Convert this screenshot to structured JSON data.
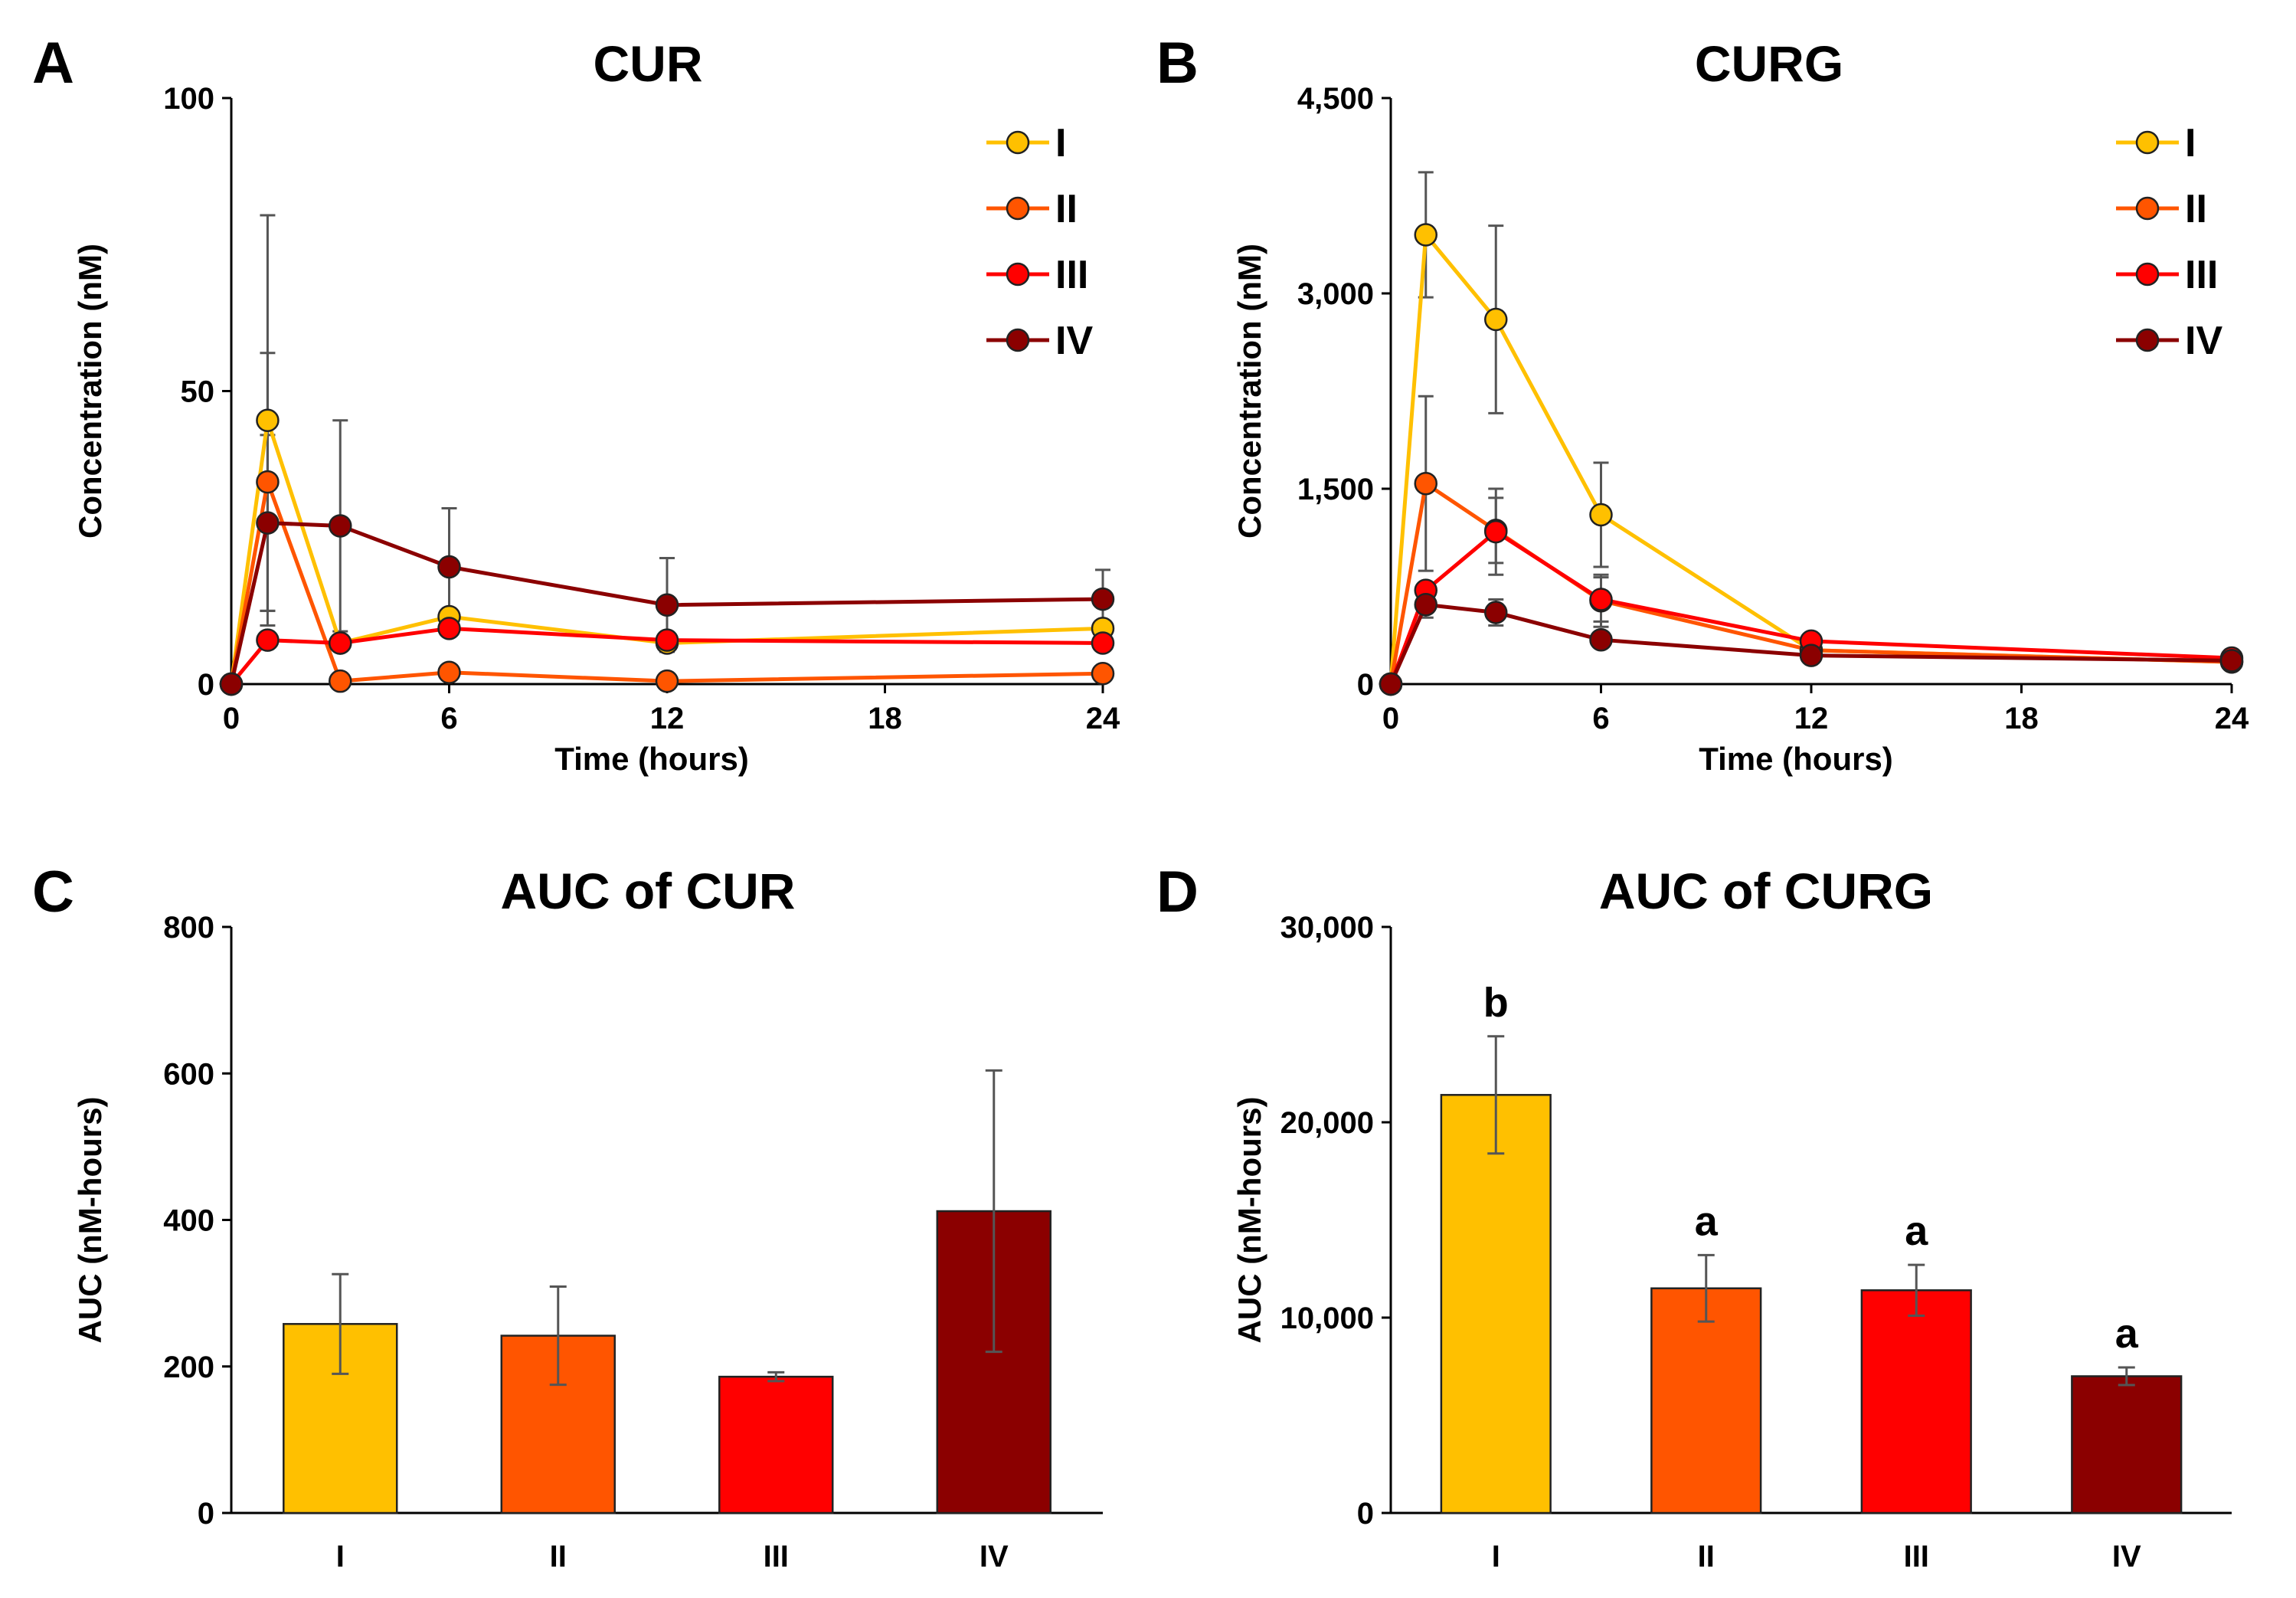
{
  "chart_data": [
    {
      "panel": "A",
      "type": "line",
      "title": "CUR",
      "xlabel": "Time (hours)",
      "ylabel": "Concentration (nM)",
      "xlim": [
        0,
        24
      ],
      "ylim": [
        0,
        100
      ],
      "xticks": [
        0,
        6,
        12,
        18,
        24
      ],
      "xtick_labels": [
        "0",
        "6",
        "12",
        "18",
        "24"
      ],
      "yticks": [
        0,
        50,
        100
      ],
      "ytick_labels": [
        "0",
        "50",
        "100"
      ],
      "legend_position": "top-right",
      "series": [
        {
          "name": "I",
          "color": "#FFC000",
          "x": [
            0,
            1,
            3,
            6,
            12,
            24
          ],
          "y": [
            0,
            45,
            7,
            11.5,
            7,
            9.5
          ],
          "err": [
            0,
            35,
            0,
            0,
            0,
            0
          ]
        },
        {
          "name": "II",
          "color": "#FF5500",
          "x": [
            0,
            1,
            3,
            6,
            12,
            24
          ],
          "y": [
            0,
            34.5,
            0.5,
            2,
            0.5,
            1.8
          ],
          "err": [
            0,
            22,
            0,
            0,
            0,
            0
          ]
        },
        {
          "name": "III",
          "color": "#FF0000",
          "x": [
            0,
            1,
            3,
            6,
            12,
            24
          ],
          "y": [
            0,
            7.5,
            7,
            9.5,
            7.5,
            7
          ],
          "err": [
            0,
            0,
            0,
            0,
            0,
            0
          ]
        },
        {
          "name": "IV",
          "color": "#8B0000",
          "x": [
            0,
            1,
            3,
            6,
            12,
            24
          ],
          "y": [
            0,
            27.5,
            27,
            20,
            13.5,
            14.5
          ],
          "err": [
            0,
            15,
            18,
            10,
            8,
            5
          ]
        }
      ]
    },
    {
      "panel": "B",
      "type": "line",
      "title": "CURG",
      "xlabel": "Time (hours)",
      "ylabel": "Concentration (nM)",
      "xlim": [
        0,
        24
      ],
      "ylim": [
        0,
        4500
      ],
      "xticks": [
        0,
        6,
        12,
        18,
        24
      ],
      "xtick_labels": [
        "0",
        "6",
        "12",
        "18",
        "24"
      ],
      "yticks": [
        0,
        1500,
        3000,
        4500
      ],
      "ytick_labels": [
        "0",
        "1,500",
        "3,000",
        "4,500"
      ],
      "legend_position": "top-right",
      "series": [
        {
          "name": "I",
          "color": "#FFC000",
          "x": [
            0,
            1,
            3,
            6,
            12,
            24
          ],
          "y": [
            0,
            3450,
            2800,
            1300,
            260,
            170
          ],
          "err": [
            0,
            480,
            720,
            400,
            0,
            0
          ]
        },
        {
          "name": "II",
          "color": "#FF5500",
          "x": [
            0,
            1,
            3,
            6,
            12,
            24
          ],
          "y": [
            0,
            1540,
            1180,
            640,
            260,
            170
          ],
          "err": [
            0,
            670,
            250,
            200,
            0,
            0
          ]
        },
        {
          "name": "III",
          "color": "#FF0000",
          "x": [
            0,
            1,
            3,
            6,
            12,
            24
          ],
          "y": [
            0,
            720,
            1170,
            650,
            330,
            200
          ],
          "err": [
            0,
            0,
            330,
            170,
            0,
            0
          ]
        },
        {
          "name": "IV",
          "color": "#8B0000",
          "x": [
            0,
            1,
            3,
            6,
            12,
            24
          ],
          "y": [
            0,
            610,
            550,
            340,
            220,
            180
          ],
          "err": [
            0,
            100,
            100,
            0,
            0,
            0
          ]
        }
      ]
    },
    {
      "panel": "C",
      "type": "bar",
      "title": "AUC of CUR",
      "xlabel": "",
      "ylabel": "AUC (nM-hours)",
      "ylim": [
        0,
        800
      ],
      "yticks": [
        0,
        200,
        400,
        600,
        800
      ],
      "ytick_labels": [
        "0",
        "200",
        "400",
        "600",
        "800"
      ],
      "categories": [
        "I",
        "II",
        "III",
        "IV"
      ],
      "colors": [
        "#FFC000",
        "#FF5500",
        "#FF0000",
        "#8B0000"
      ],
      "values": [
        258,
        242,
        186,
        412
      ],
      "err": [
        68,
        67,
        6,
        192
      ],
      "significance": [
        "",
        "",
        "",
        ""
      ]
    },
    {
      "panel": "D",
      "type": "bar",
      "title": "AUC of CURG",
      "xlabel": "",
      "ylabel": "AUC (nM-hours)",
      "ylim": [
        0,
        30000
      ],
      "yticks": [
        0,
        10000,
        20000,
        30000
      ],
      "ytick_labels": [
        "0",
        "10,000",
        "20,000",
        "30,000"
      ],
      "categories": [
        "I",
        "II",
        "III",
        "IV"
      ],
      "colors": [
        "#FFC000",
        "#FF5500",
        "#FF0000",
        "#8B0000"
      ],
      "values": [
        21400,
        11500,
        11400,
        7000
      ],
      "err": [
        3000,
        1700,
        1300,
        450
      ],
      "significance": [
        "b",
        "a",
        "a",
        "a"
      ]
    }
  ]
}
